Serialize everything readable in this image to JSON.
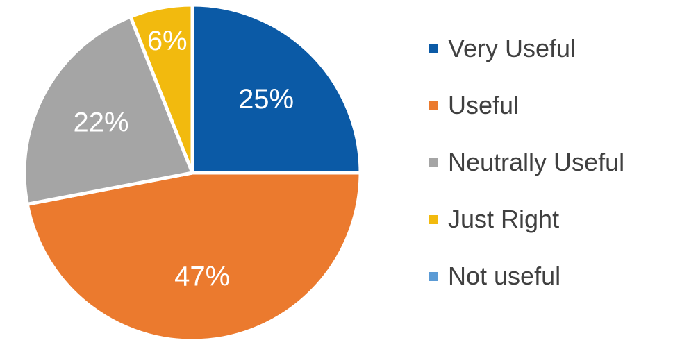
{
  "chart_data": {
    "type": "pie",
    "title": "",
    "legend_position": "right",
    "slices": [
      {
        "label": "Very Useful",
        "value": 25,
        "display": "25%",
        "color": "#0B5AA6"
      },
      {
        "label": "Useful",
        "value": 47,
        "display": "47%",
        "color": "#EB7A2E"
      },
      {
        "label": "Neutrally Useful",
        "value": 22,
        "display": "22%",
        "color": "#A5A5A5"
      },
      {
        "label": "Just Right",
        "value": 6,
        "display": "6%",
        "color": "#F2BA0E"
      },
      {
        "label": "Not useful",
        "value": 0,
        "display": "",
        "color": "#5B9BD5"
      }
    ]
  }
}
